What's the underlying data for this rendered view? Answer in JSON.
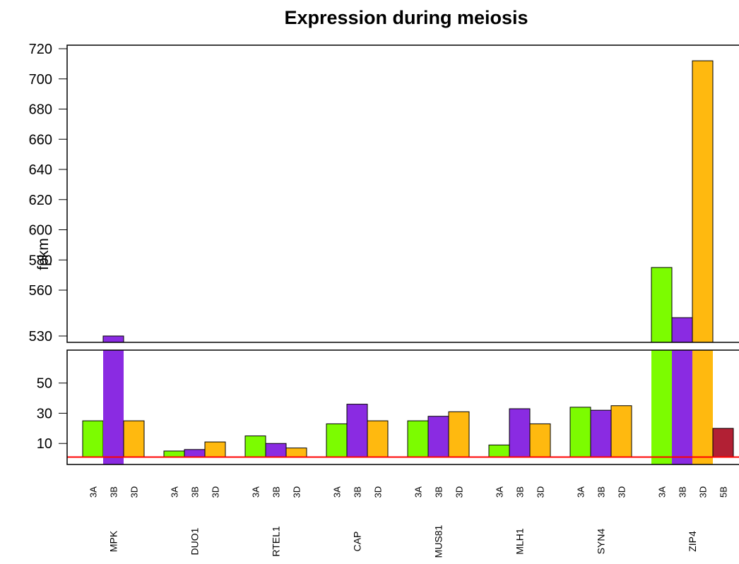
{
  "chart_data": {
    "type": "bar",
    "title": "Expression during meiosis",
    "ylabel": "fpkm",
    "xlabel": "",
    "axis_break": {
      "lower_range": [
        0,
        60
      ],
      "upper_range": [
        530,
        720
      ]
    },
    "lower_ticks": [
      "10",
      "30",
      "50"
    ],
    "upper_ticks": [
      "530",
      "560",
      "580",
      "600",
      "620",
      "640",
      "660",
      "680",
      "700",
      "720"
    ],
    "reference_line": {
      "value": 1,
      "color": "#ff0000"
    },
    "colors": {
      "3A": "#7cfc00",
      "3B": "#8a2be2",
      "3D": "#ffb90f",
      "5B": "#b22034"
    },
    "groups": [
      {
        "gene": "MPK",
        "bars": [
          {
            "label": "3A",
            "value": 25
          },
          {
            "label": "3B",
            "value": 63
          },
          {
            "label": "3D",
            "value": 25
          }
        ]
      },
      {
        "gene": "DUO1",
        "bars": [
          {
            "label": "3A",
            "value": 5
          },
          {
            "label": "3B",
            "value": 6
          },
          {
            "label": "3D",
            "value": 11
          }
        ]
      },
      {
        "gene": "RTEL1",
        "bars": [
          {
            "label": "3A",
            "value": 15
          },
          {
            "label": "3B",
            "value": 10
          },
          {
            "label": "3D",
            "value": 7
          }
        ]
      },
      {
        "gene": "CAP",
        "bars": [
          {
            "label": "3A",
            "value": 23
          },
          {
            "label": "3B",
            "value": 36
          },
          {
            "label": "3D",
            "value": 25
          }
        ]
      },
      {
        "gene": "MUS81",
        "bars": [
          {
            "label": "3A",
            "value": 25
          },
          {
            "label": "3B",
            "value": 28
          },
          {
            "label": "3D",
            "value": 31
          }
        ]
      },
      {
        "gene": "MLH1",
        "bars": [
          {
            "label": "3A",
            "value": 9
          },
          {
            "label": "3B",
            "value": 33
          },
          {
            "label": "3D",
            "value": 23
          }
        ]
      },
      {
        "gene": "SYN4",
        "bars": [
          {
            "label": "3A",
            "value": 34
          },
          {
            "label": "3B",
            "value": 32
          },
          {
            "label": "3D",
            "value": 35
          }
        ]
      },
      {
        "gene": "ZIP4",
        "bars": [
          {
            "label": "3A",
            "value": 575
          },
          {
            "label": "3B",
            "value": 542
          },
          {
            "label": "3D",
            "value": 712
          },
          {
            "label": "5B",
            "value": 20
          }
        ]
      }
    ]
  }
}
